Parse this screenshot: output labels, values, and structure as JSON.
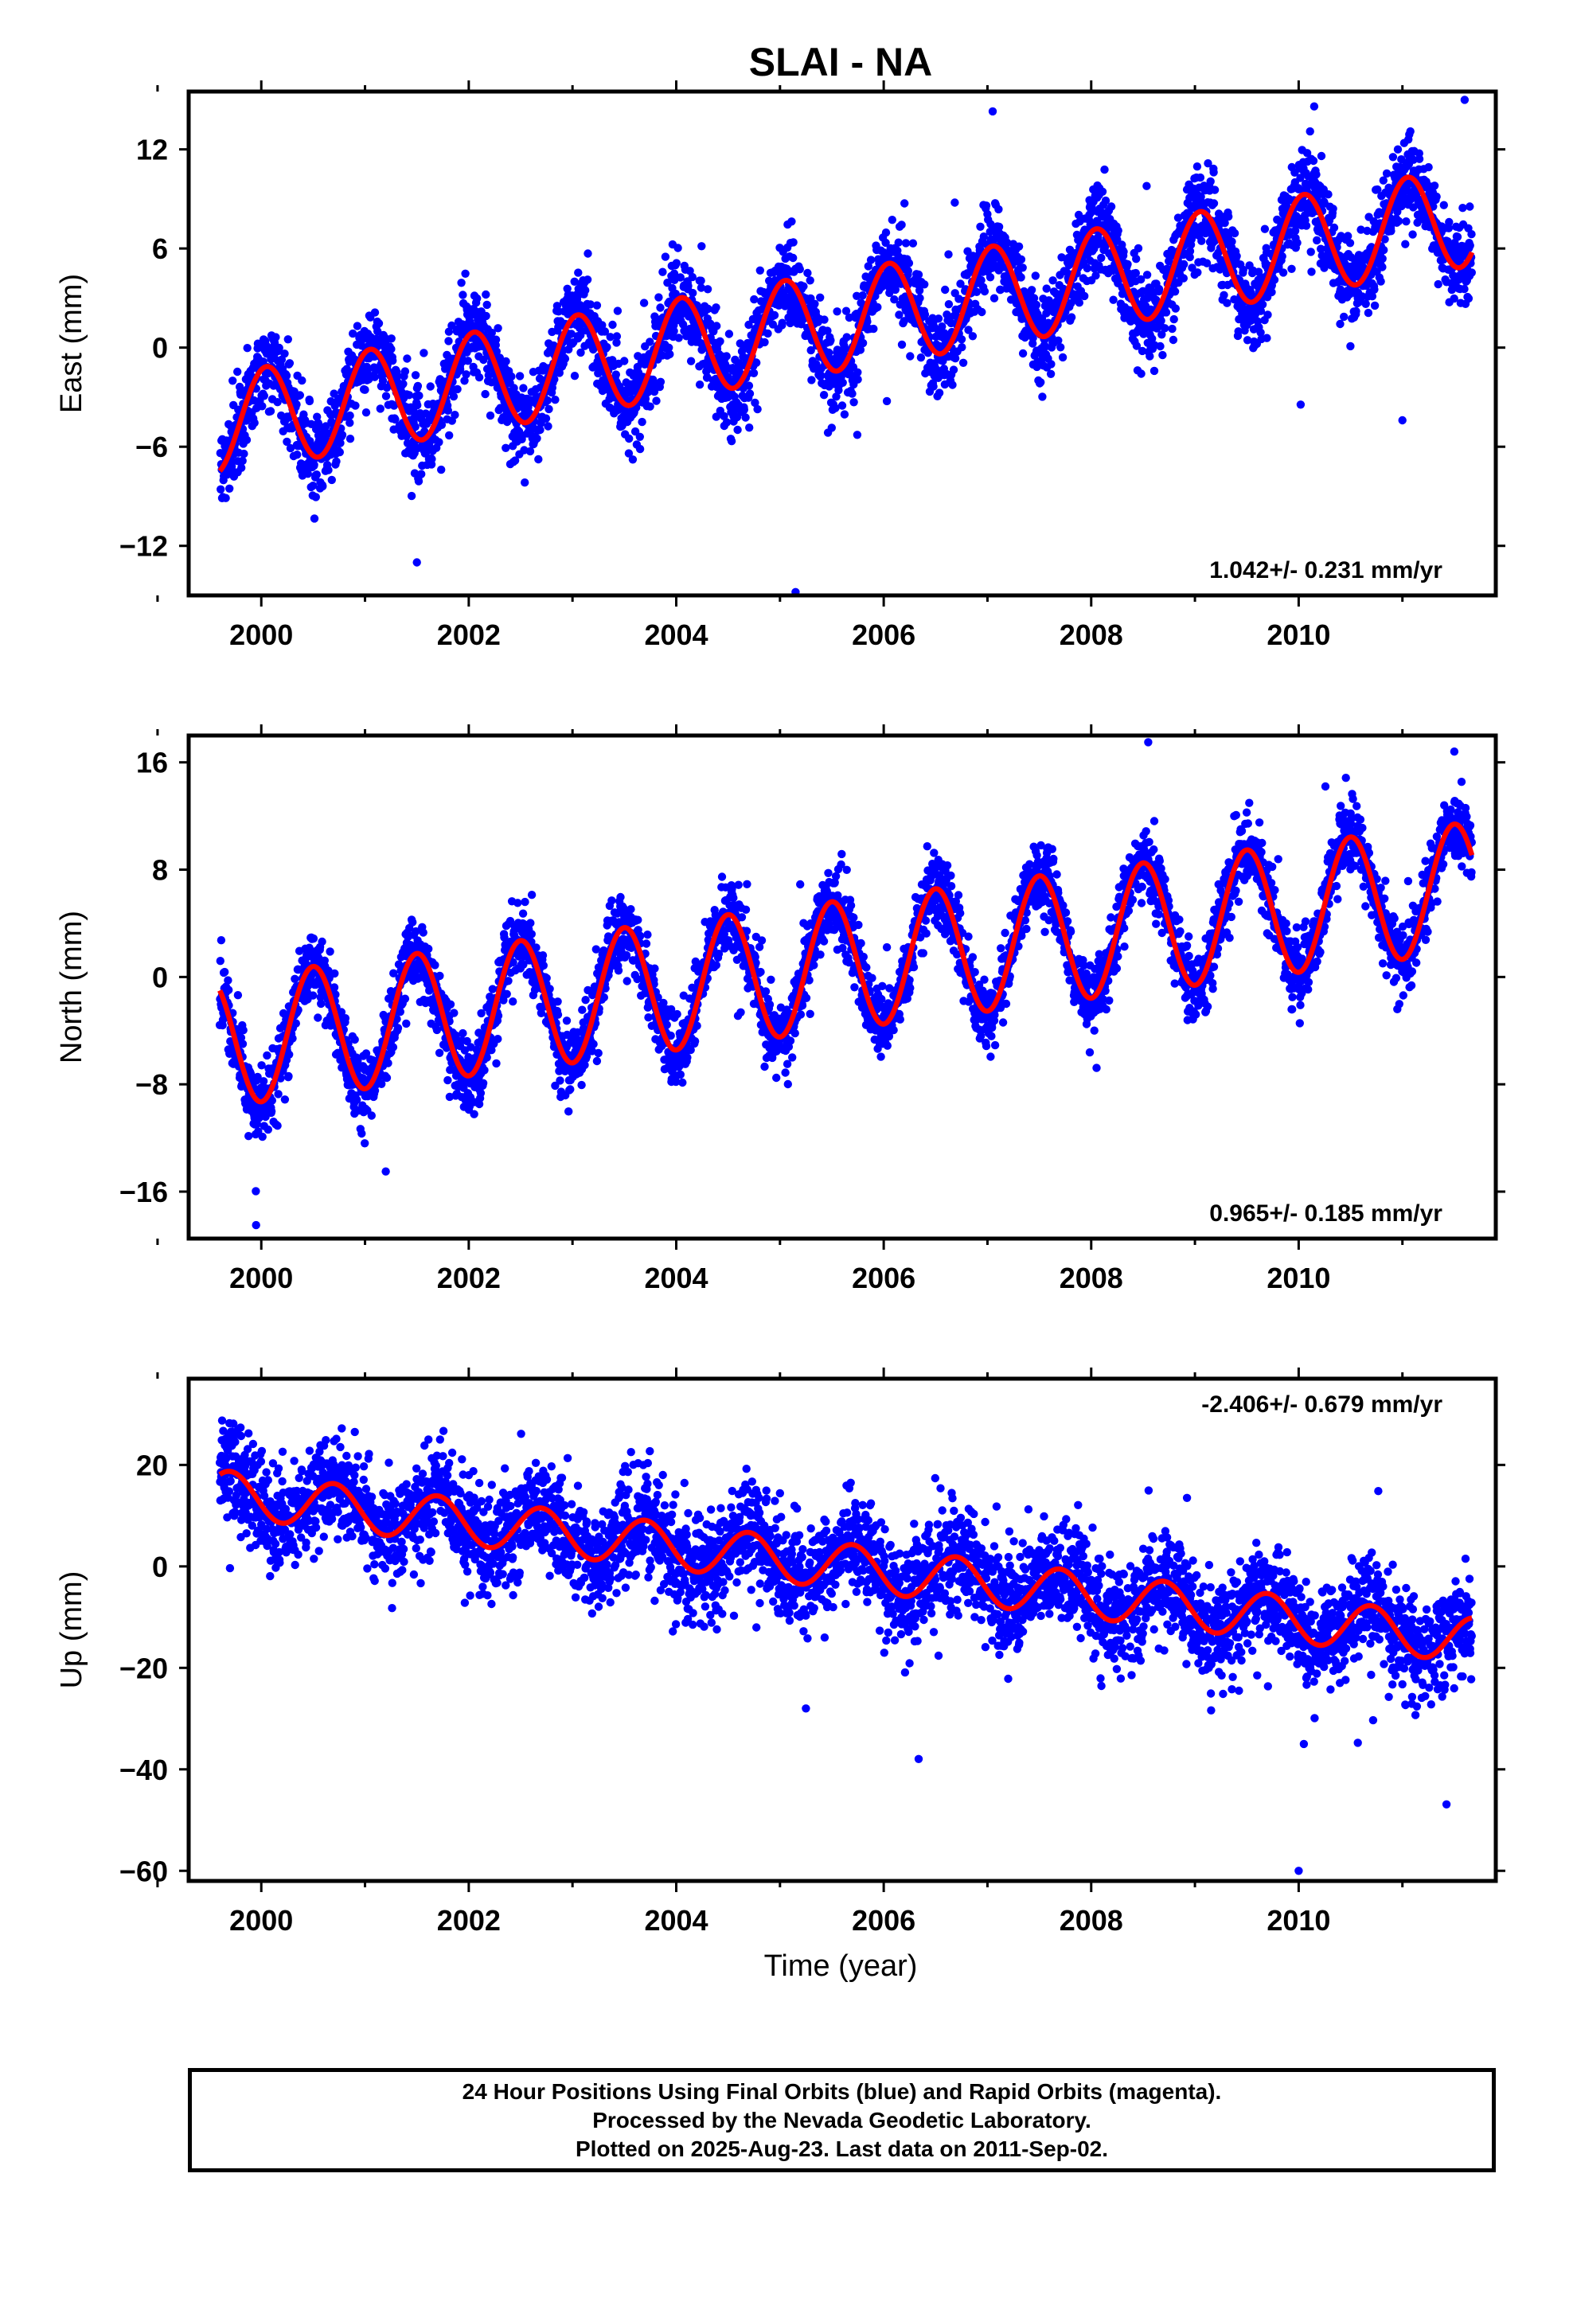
{
  "chart_data": {
    "type": "scatter",
    "title": "SLAI - NA",
    "xlabel": "Time (year)",
    "xlim": [
      1999.3,
      2011.9
    ],
    "xticks": [
      2000,
      2002,
      2004,
      2006,
      2008,
      2010
    ],
    "xtick_labels": [
      "2000",
      "2002",
      "2004",
      "2006",
      "2008",
      "2010"
    ],
    "x_range_data": [
      1999.6,
      2011.67
    ],
    "colors": {
      "points": "#0000ff",
      "fit": "#ff0000",
      "frame": "#000000"
    },
    "grid": false,
    "panels": [
      {
        "name": "east",
        "ylabel": "East (mm)",
        "ylim": [
          -15,
          15.5
        ],
        "yticks": [
          -12,
          -6,
          0,
          6,
          12
        ],
        "ytick_labels": [
          "−12",
          "−6",
          "0",
          "6",
          "12"
        ],
        "rate_label": "1.042+/- 0.231 mm/yr",
        "rate_position": "bottom-right",
        "fit": {
          "offset": -4.2,
          "rate": 1.042,
          "amp": 3.0,
          "phase_peak": 0.05,
          "ref_year": 2000
        },
        "noise": 1.3,
        "outliers": [
          [
            2005.15,
            -14.8
          ],
          [
            2007.05,
            14.3
          ],
          [
            2010.15,
            14.6
          ],
          [
            2011.6,
            15.0
          ],
          [
            2011.0,
            -4.4
          ],
          [
            2001.5,
            -13.0
          ]
        ]
      },
      {
        "name": "north",
        "ylabel": "North (mm)",
        "ylim": [
          -19.5,
          18
        ],
        "yticks": [
          -16,
          -8,
          0,
          8,
          16
        ],
        "ytick_labels": [
          "−16",
          "−8",
          "0",
          "8",
          "16"
        ],
        "rate_label": "0.965+/- 0.185 mm/yr",
        "rate_position": "bottom-right",
        "fit": {
          "offset": -4.5,
          "rate": 0.965,
          "amp": 4.8,
          "phase_peak": 0.5,
          "ref_year": 2000
        },
        "noise": 1.3,
        "outliers": [
          [
            1999.95,
            -18.5
          ],
          [
            2008.55,
            17.5
          ],
          [
            2011.5,
            16.8
          ],
          [
            2001.2,
            -14.5
          ]
        ]
      },
      {
        "name": "up",
        "ylabel": "Up (mm)",
        "ylim": [
          -62,
          37
        ],
        "yticks": [
          -60,
          -40,
          -20,
          0,
          20
        ],
        "ytick_labels": [
          "−60",
          "−40",
          "−20",
          "0",
          "20"
        ],
        "rate_label": "-2.406+/- 0.679 mm/yr",
        "rate_position": "top-right",
        "fit": {
          "offset": 13.5,
          "rate": -2.406,
          "amp": 4.5,
          "phase_peak": 0.7,
          "ref_year": 2000
        },
        "noise": 5.0,
        "outliers": [
          [
            2005.25,
            -28
          ],
          [
            2010.05,
            -35
          ],
          [
            2010.0,
            -60
          ]
        ]
      }
    ]
  },
  "caption": {
    "line1": "24 Hour Positions Using Final Orbits (blue) and Rapid Orbits (magenta).",
    "line2": "Processed by the Nevada Geodetic Laboratory.",
    "line3": "Plotted on 2025-Aug-23. Last data on 2011-Sep-02."
  }
}
